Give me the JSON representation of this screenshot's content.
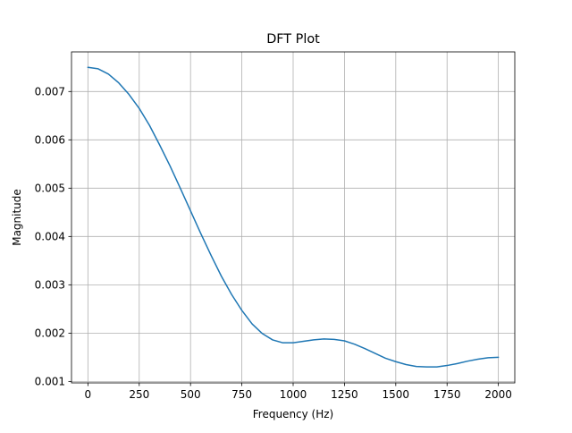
{
  "chart_data": {
    "type": "line",
    "title": "DFT Plot",
    "xlabel": "Frequency (Hz)",
    "ylabel": "Magnitude",
    "xlim": [
      -80,
      2080
    ],
    "ylim": [
      0.00097,
      0.00782
    ],
    "grid": true,
    "x_ticks": [
      0,
      250,
      500,
      750,
      1000,
      1250,
      1500,
      1750,
      2000
    ],
    "x_tick_labels": [
      "0",
      "250",
      "500",
      "750",
      "1000",
      "1250",
      "1500",
      "1750",
      "2000"
    ],
    "y_ticks": [
      0.001,
      0.002,
      0.003,
      0.004,
      0.005,
      0.006,
      0.007
    ],
    "y_tick_labels": [
      "0.001",
      "0.002",
      "0.003",
      "0.004",
      "0.005",
      "0.006",
      "0.007"
    ],
    "series": [
      {
        "color": "#1f77b4",
        "x": [
          0,
          50,
          100,
          150,
          200,
          250,
          300,
          350,
          400,
          450,
          500,
          550,
          600,
          650,
          700,
          750,
          800,
          850,
          900,
          950,
          1000,
          1050,
          1100,
          1150,
          1200,
          1250,
          1300,
          1350,
          1400,
          1450,
          1500,
          1550,
          1600,
          1650,
          1700,
          1750,
          1800,
          1850,
          1900,
          1950,
          2000
        ],
        "y": [
          0.0075,
          0.00747,
          0.00736,
          0.00718,
          0.00694,
          0.00665,
          0.0063,
          0.00589,
          0.00546,
          0.005,
          0.00453,
          0.00406,
          0.00361,
          0.00318,
          0.0028,
          0.00247,
          0.00219,
          0.00199,
          0.00186,
          0.0018,
          0.0018,
          0.00183,
          0.00186,
          0.00188,
          0.00187,
          0.00184,
          0.00177,
          0.00168,
          0.00158,
          0.00148,
          0.00141,
          0.00135,
          0.00131,
          0.0013,
          0.0013,
          0.00133,
          0.00137,
          0.00142,
          0.00146,
          0.00149,
          0.0015
        ]
      }
    ]
  }
}
